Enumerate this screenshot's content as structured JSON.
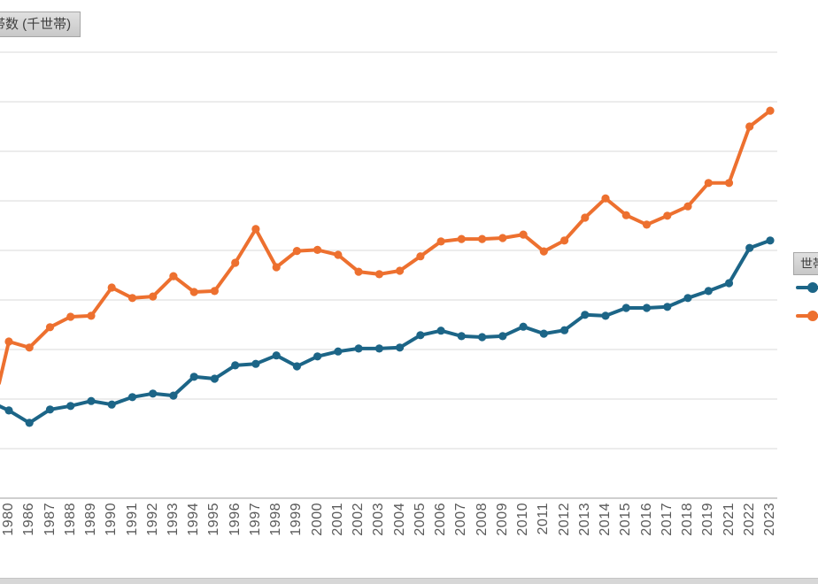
{
  "title_box": {
    "text": "帯数 (千世帯)"
  },
  "legend": {
    "header": "世帯",
    "items": [
      {
        "id": "blue",
        "color": "#1c6587"
      },
      {
        "id": "orange",
        "color": "#ed702f"
      }
    ]
  },
  "colors": {
    "series_blue": "#1c6587",
    "series_orange": "#ed702f",
    "gridline": "#d9d9d9",
    "axis_line": "#bfbfbf",
    "tick_label": "#595959",
    "field_button_bg": "#cfcfcf"
  },
  "chart_data": {
    "type": "line",
    "title": "帯数 (千世帯)",
    "xlabel": "",
    "ylabel": "",
    "x": [
      "1980",
      "1986",
      "1987",
      "1988",
      "1989",
      "1990",
      "1991",
      "1992",
      "1993",
      "1994",
      "1995",
      "1996",
      "1997",
      "1998",
      "1999",
      "2000",
      "2001",
      "2002",
      "2003",
      "2004",
      "2005",
      "2006",
      "2007",
      "2008",
      "2009",
      "2010",
      "2011",
      "2012",
      "2013",
      "2014",
      "2015",
      "2016",
      "2017",
      "2018",
      "2019",
      "2021",
      "2022",
      "2023"
    ],
    "note": "Y-axis tick labels are cropped out of the visible area; values below are measured in horizontal-gridline units above the x-axis (1 unit = one gridline spacing). Left edge of plot and series labels are also cropped.",
    "series": [
      {
        "id": "blue",
        "color": "#1c6587",
        "edge_entry_value": 1.86,
        "values": [
          1.77,
          1.52,
          1.79,
          1.86,
          1.96,
          1.89,
          2.04,
          2.11,
          2.07,
          2.45,
          2.41,
          2.68,
          2.71,
          2.88,
          2.66,
          2.86,
          2.96,
          3.02,
          3.02,
          3.04,
          3.29,
          3.38,
          3.27,
          3.25,
          3.27,
          3.46,
          3.32,
          3.39,
          3.7,
          3.68,
          3.84,
          3.84,
          3.86,
          4.04,
          4.18,
          4.34,
          5.05,
          5.2
        ]
      },
      {
        "id": "orange",
        "color": "#ed702f",
        "edge_entry_value": 2.32,
        "values": [
          3.16,
          3.04,
          3.45,
          3.66,
          3.68,
          4.25,
          4.04,
          4.07,
          4.48,
          4.16,
          4.18,
          4.75,
          5.43,
          4.66,
          4.99,
          5.01,
          4.91,
          4.57,
          4.52,
          4.59,
          4.88,
          5.18,
          5.23,
          5.23,
          5.25,
          5.32,
          4.98,
          5.2,
          5.66,
          6.05,
          5.71,
          5.52,
          5.7,
          5.89,
          6.36,
          6.36,
          7.5,
          7.82
        ]
      }
    ],
    "ylim": [
      0,
      9
    ],
    "grid": true,
    "legend_position": "right"
  }
}
